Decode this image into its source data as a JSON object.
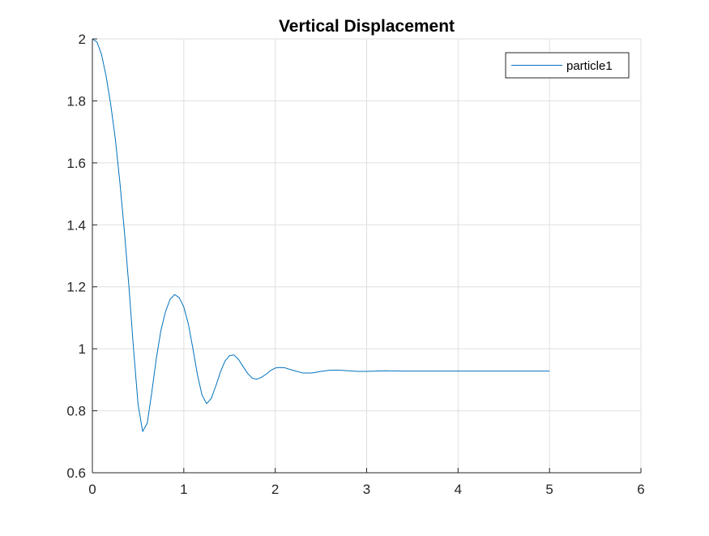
{
  "chart_data": {
    "type": "line",
    "title": "Vertical Displacement",
    "xlabel": "",
    "ylabel": "",
    "xlim": [
      0,
      6
    ],
    "ylim": [
      0.6,
      2
    ],
    "x_ticks": [
      0,
      1,
      2,
      3,
      4,
      5,
      6
    ],
    "x_tick_labels": [
      "0",
      "1",
      "2",
      "3",
      "4",
      "5",
      "6"
    ],
    "y_ticks": [
      0.6,
      0.8,
      1,
      1.2,
      1.4,
      1.6,
      1.8,
      2
    ],
    "y_tick_labels": [
      "0.6",
      "0.8",
      "1",
      "1.2",
      "1.4",
      "1.6",
      "1.8",
      "2"
    ],
    "grid": true,
    "legend_position": "top-right",
    "series": [
      {
        "name": "particle1",
        "color": "#0072bd",
        "x": [
          0,
          0.05,
          0.1,
          0.15,
          0.2,
          0.25,
          0.3,
          0.35,
          0.4,
          0.45,
          0.5,
          0.55,
          0.6,
          0.65,
          0.7,
          0.75,
          0.8,
          0.85,
          0.9,
          0.95,
          1.0,
          1.05,
          1.1,
          1.15,
          1.2,
          1.25,
          1.3,
          1.35,
          1.4,
          1.45,
          1.5,
          1.55,
          1.6,
          1.65,
          1.7,
          1.75,
          1.8,
          1.85,
          1.9,
          1.95,
          2.0,
          2.05,
          2.1,
          2.2,
          2.3,
          2.4,
          2.5,
          2.6,
          2.7,
          2.8,
          2.9,
          3.0,
          3.2,
          3.4,
          3.6,
          3.8,
          4.0,
          4.2,
          4.4,
          4.6,
          4.8,
          5.0
        ],
        "y": [
          2.0,
          1.99,
          1.95,
          1.88,
          1.79,
          1.68,
          1.54,
          1.38,
          1.2,
          1.0,
          0.82,
          0.733,
          0.76,
          0.86,
          0.97,
          1.06,
          1.12,
          1.16,
          1.175,
          1.165,
          1.135,
          1.08,
          1.0,
          0.915,
          0.85,
          0.823,
          0.84,
          0.88,
          0.925,
          0.96,
          0.978,
          0.98,
          0.965,
          0.942,
          0.92,
          0.905,
          0.902,
          0.908,
          0.918,
          0.93,
          0.938,
          0.94,
          0.939,
          0.93,
          0.922,
          0.922,
          0.927,
          0.931,
          0.931,
          0.929,
          0.927,
          0.927,
          0.929,
          0.928,
          0.928,
          0.928,
          0.928,
          0.928,
          0.928,
          0.928,
          0.928,
          0.928
        ]
      }
    ]
  }
}
